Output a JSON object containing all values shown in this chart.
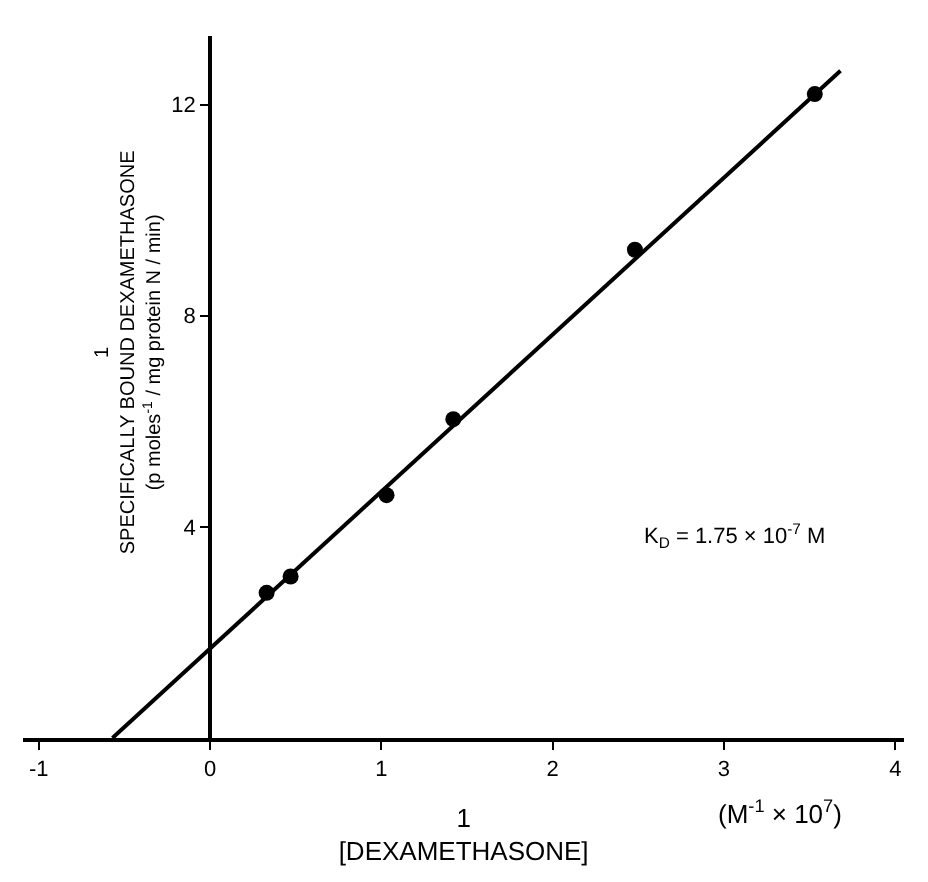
{
  "chart_data": {
    "type": "scatter",
    "xlabel": "1\n[DEXAMETHASONE]",
    "ylabel": "1\nSPECIFICALLY BOUND DEXAMETHASONE\n(p moles$^{-1}$ / mg protein N / min)",
    "series": [
      {
        "color": "#000000",
        "marker": "circle",
        "x": [
          0.33,
          0.47,
          1.03,
          1.42,
          2.48,
          3.53
        ],
        "values": [
          2.75,
          3.06,
          4.6,
          6.04,
          9.25,
          12.2
        ]
      },
      {
        "type": "line",
        "color": "#000000",
        "marker": "none",
        "line_style": "solid",
        "x": [
          -0.57,
          3.68
        ],
        "values": [
          0,
          12.64
        ]
      }
    ],
    "annotations": [
      "K$_{D}$ = 1.75 × 10$^{-7}$ M",
      "(M$^{-1}$ × 10$^{7}$)"
    ],
    "xlim": [
      -1.09,
      4.05
    ],
    "ylim": [
      0,
      13.3
    ],
    "xticks": [
      -1,
      0,
      1,
      2,
      3,
      4
    ],
    "yticks": [
      4,
      8,
      12
    ],
    "grid": false
  }
}
